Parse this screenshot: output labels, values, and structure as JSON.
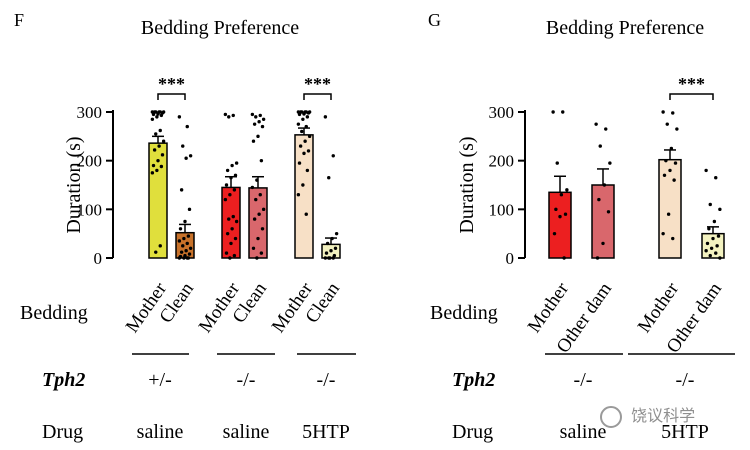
{
  "chart_data": [
    {
      "type": "bar",
      "panel_label": "F",
      "title": "Bedding Preference",
      "ylabel": "Duration (s)",
      "ylim": [
        0,
        300
      ],
      "yticks": [
        0,
        100,
        200,
        300
      ],
      "categories": [
        "Mother",
        "Clean",
        "Mother",
        "Clean",
        "Mother",
        "Clean"
      ],
      "values": [
        236,
        52,
        145,
        144,
        253,
        28
      ],
      "errors": [
        14,
        17,
        22,
        23,
        14,
        13
      ],
      "colors": [
        "#e0df3c",
        "#c8722a",
        "#ec1f20",
        "#d9676c",
        "#f7e0c6",
        "#f3f2c0"
      ],
      "points": [
        [
          300,
          300,
          300,
          300,
          300,
          300,
          298,
          296,
          295,
          293,
          290,
          285,
          262,
          255,
          240,
          230,
          222,
          212,
          200,
          190,
          188,
          180,
          175,
          25,
          12
        ],
        [
          290,
          270,
          230,
          210,
          205,
          140,
          100,
          75,
          60,
          45,
          40,
          35,
          30,
          25,
          20,
          15,
          12,
          8,
          5,
          3,
          0,
          0,
          0,
          0
        ],
        [
          295,
          293,
          290,
          195,
          190,
          180,
          170,
          165,
          150,
          140,
          130,
          120,
          85,
          80,
          75,
          60,
          50,
          40,
          30,
          10,
          5,
          0
        ],
        [
          295,
          293,
          290,
          285,
          280,
          275,
          270,
          250,
          240,
          200,
          160,
          145,
          130,
          120,
          100,
          90,
          80,
          60,
          40,
          20,
          10,
          0
        ],
        [
          300,
          300,
          300,
          300,
          300,
          300,
          298,
          296,
          295,
          290,
          285,
          275,
          270,
          260,
          250,
          240,
          230,
          220,
          215,
          195,
          180,
          150,
          130,
          90
        ],
        [
          290,
          210,
          165,
          50,
          40,
          30,
          20,
          15,
          10,
          5,
          0,
          0,
          0,
          0
        ]
      ],
      "significance": [
        {
          "from": 0,
          "to": 1,
          "label": "***"
        },
        {
          "from": 4,
          "to": 5,
          "label": "***"
        }
      ],
      "row_labels": {
        "bedding": "Bedding",
        "genotype": "Tph2",
        "drug": "Drug"
      },
      "groups": [
        {
          "genotype": "+/-",
          "drug": "saline"
        },
        {
          "genotype": "-/-",
          "drug": "saline"
        },
        {
          "genotype": "-/-",
          "drug": "5HTP"
        }
      ]
    },
    {
      "type": "bar",
      "panel_label": "G",
      "title": "Bedding Preference",
      "ylabel": "Duration (s)",
      "ylim": [
        0,
        300
      ],
      "yticks": [
        0,
        100,
        200,
        300
      ],
      "categories": [
        "Mother",
        "Other dam",
        "Mother",
        "Other dam"
      ],
      "values": [
        135,
        150,
        202,
        50
      ],
      "errors": [
        33,
        33,
        20,
        14
      ],
      "colors": [
        "#ec1f20",
        "#d9676c",
        "#f7e0c6",
        "#f3f2c0"
      ],
      "points": [
        [
          300,
          300,
          195,
          140,
          130,
          100,
          90,
          85,
          50,
          0
        ],
        [
          275,
          265,
          230,
          195,
          150,
          120,
          95,
          30,
          0
        ],
        [
          300,
          298,
          275,
          265,
          225,
          200,
          195,
          180,
          170,
          160,
          90,
          50,
          40
        ],
        [
          180,
          165,
          110,
          100,
          75,
          60,
          45,
          40,
          30,
          25,
          20,
          15,
          10,
          5,
          0
        ]
      ],
      "significance": [
        {
          "from": 2,
          "to": 3,
          "label": "***"
        }
      ],
      "row_labels": {
        "bedding": "Bedding",
        "genotype": "Tph2",
        "drug": "Drug"
      },
      "groups": [
        {
          "genotype": "-/-",
          "drug": "saline"
        },
        {
          "genotype": "-/-",
          "drug": "5HTP"
        }
      ]
    }
  ],
  "watermark": "饶议科学"
}
